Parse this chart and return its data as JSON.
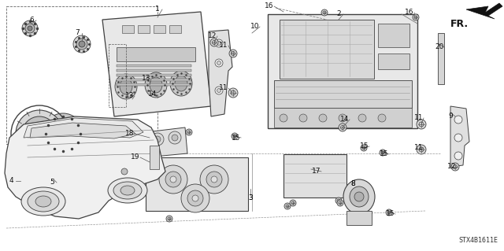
{
  "background_color": "#ffffff",
  "diagram_code": "STX4B1611E",
  "fr_label": "FR.",
  "lc": "#404040",
  "part_labels": [
    [
      "1",
      200,
      12
    ],
    [
      "2",
      430,
      20
    ],
    [
      "3",
      318,
      248
    ],
    [
      "4",
      14,
      228
    ],
    [
      "5",
      62,
      228
    ],
    [
      "6",
      42,
      28
    ],
    [
      "7",
      100,
      42
    ],
    [
      "8",
      450,
      230
    ],
    [
      "9",
      570,
      148
    ],
    [
      "10",
      322,
      34
    ],
    [
      "11",
      284,
      60
    ],
    [
      "11",
      284,
      114
    ],
    [
      "11",
      530,
      150
    ],
    [
      "11",
      530,
      186
    ],
    [
      "12",
      270,
      48
    ],
    [
      "12",
      572,
      210
    ],
    [
      "13",
      188,
      100
    ],
    [
      "13",
      168,
      122
    ],
    [
      "14",
      196,
      122
    ],
    [
      "14",
      436,
      150
    ],
    [
      "15",
      238,
      170
    ],
    [
      "15",
      450,
      178
    ],
    [
      "15",
      476,
      190
    ],
    [
      "15",
      490,
      268
    ],
    [
      "16",
      340,
      8
    ],
    [
      "16",
      520,
      18
    ],
    [
      "17",
      400,
      214
    ],
    [
      "18",
      168,
      172
    ],
    [
      "19",
      175,
      198
    ],
    [
      "20",
      556,
      62
    ]
  ]
}
